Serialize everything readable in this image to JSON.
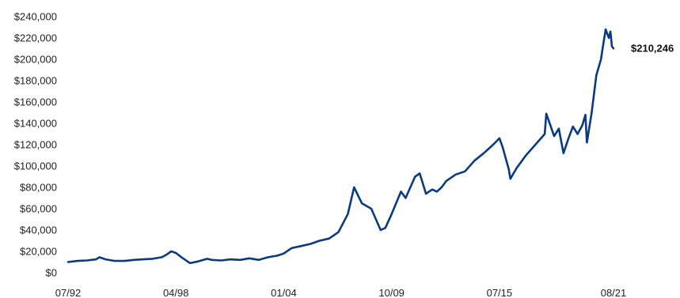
{
  "chart_data": {
    "type": "line",
    "title": "",
    "xlabel": "",
    "ylabel": "",
    "ylim": [
      0,
      240000
    ],
    "y_ticks": [
      0,
      20000,
      40000,
      60000,
      80000,
      100000,
      120000,
      140000,
      160000,
      180000,
      200000,
      220000,
      240000
    ],
    "y_tick_labels": [
      "$0",
      "$20,000",
      "$40,000",
      "$60,000",
      "$80,000",
      "$100,000",
      "$120,000",
      "$140,000",
      "$160,000",
      "$180,000",
      "$200,000",
      "$220,000",
      "$240,000"
    ],
    "xlim": [
      "1992-07",
      "2021-08"
    ],
    "x_ticks": [
      "1992-07",
      "1998-04",
      "2004-01",
      "2009-10",
      "2015-07",
      "2021-08"
    ],
    "x_tick_labels": [
      "07/92",
      "04/98",
      "01/04",
      "10/09",
      "07/15",
      "08/21"
    ],
    "grid": false,
    "legend": "none",
    "line_color": "#0a3a7f",
    "end_label": "$210,246",
    "series": [
      {
        "x": [
          "1992-07",
          "1993-01",
          "1993-07",
          "1994-01",
          "1994-03",
          "1994-07",
          "1995-01",
          "1995-07",
          "1996-01",
          "1996-07",
          "1997-01",
          "1997-07",
          "1997-10",
          "1998-01",
          "1998-04",
          "1998-08",
          "1998-10",
          "1999-01",
          "1999-06",
          "1999-12",
          "2000-03",
          "2000-09",
          "2001-03",
          "2001-09",
          "2002-03",
          "2002-09",
          "2003-03",
          "2003-09",
          "2004-01",
          "2004-06",
          "2004-12",
          "2005-06",
          "2005-12",
          "2006-06",
          "2006-12",
          "2007-06",
          "2007-10",
          "2008-03",
          "2008-09",
          "2009-03",
          "2009-06",
          "2009-10",
          "2010-04",
          "2010-07",
          "2011-01",
          "2011-04",
          "2011-08",
          "2011-12",
          "2012-03",
          "2012-06",
          "2012-09",
          "2013-03",
          "2013-09",
          "2014-03",
          "2014-09",
          "2015-03",
          "2015-07",
          "2015-09",
          "2016-01",
          "2016-02",
          "2016-06",
          "2016-12",
          "2017-06",
          "2017-12",
          "2018-01",
          "2018-06",
          "2018-09",
          "2018-12",
          "2019-03",
          "2019-06",
          "2019-09",
          "2019-12",
          "2020-02",
          "2020-03",
          "2020-06",
          "2020-09",
          "2020-12",
          "2021-01",
          "2021-03",
          "2021-05",
          "2021-06",
          "2021-07",
          "2021-08"
        ],
        "y": [
          10000,
          11000,
          11500,
          12500,
          14500,
          12500,
          11000,
          11000,
          12000,
          12500,
          13000,
          14500,
          17000,
          20000,
          18500,
          14000,
          12000,
          9000,
          10500,
          13000,
          12000,
          11500,
          12500,
          12000,
          13500,
          12000,
          14500,
          16000,
          18000,
          23000,
          25000,
          27000,
          30000,
          32000,
          38000,
          55000,
          80000,
          65000,
          60000,
          40000,
          42000,
          55000,
          76000,
          70000,
          90000,
          93000,
          74000,
          78000,
          76000,
          80000,
          86000,
          92000,
          95000,
          105000,
          112000,
          120000,
          126000,
          118000,
          97000,
          88000,
          98000,
          110000,
          120000,
          130000,
          149000,
          128000,
          135000,
          112000,
          125000,
          137000,
          130000,
          138000,
          148000,
          122000,
          150000,
          185000,
          200000,
          210000,
          228000,
          220000,
          226000,
          212000,
          210246
        ]
      }
    ]
  }
}
